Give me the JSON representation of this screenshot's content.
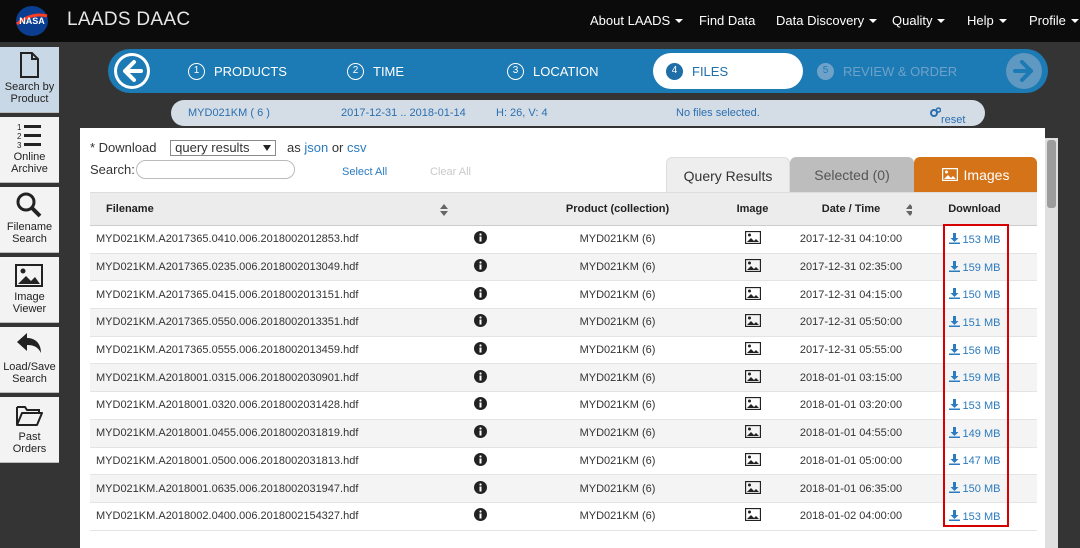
{
  "header": {
    "brand": "LAADS DAAC",
    "logo_text": "NASA",
    "nav": [
      {
        "label": "About LAADS",
        "dropdown": true
      },
      {
        "label": "Find Data",
        "dropdown": false
      },
      {
        "label": "Data Discovery",
        "dropdown": true
      },
      {
        "label": "Quality",
        "dropdown": true
      },
      {
        "label": "Help",
        "dropdown": true
      },
      {
        "label": "Profile",
        "dropdown": true
      }
    ]
  },
  "sidebar": {
    "items": [
      {
        "line1": "Search by",
        "line2": "Product",
        "icon": "document-icon"
      },
      {
        "line1": "Online",
        "line2": "Archive",
        "icon": "numbered-list-icon"
      },
      {
        "line1": "Filename",
        "line2": "Search",
        "icon": "magnifier-icon"
      },
      {
        "line1": "Image",
        "line2": "Viewer",
        "icon": "picture-icon"
      },
      {
        "line1": "Load/Save",
        "line2": "Search",
        "icon": "undo-arrow-icon"
      },
      {
        "line1": "Past",
        "line2": "Orders",
        "icon": "folder-open-icon"
      }
    ]
  },
  "wizard": {
    "steps": [
      {
        "num": "1",
        "label": "PRODUCTS",
        "state": "done"
      },
      {
        "num": "2",
        "label": "TIME",
        "state": "done"
      },
      {
        "num": "3",
        "label": "LOCATION",
        "state": "done"
      },
      {
        "num": "4",
        "label": "FILES",
        "state": "active"
      },
      {
        "num": "5",
        "label": "REVIEW & ORDER",
        "state": "disabled"
      }
    ]
  },
  "summary": {
    "product": "MYD021KM ( 6 )",
    "dates": "2017-12-31 .. 2018-01-14",
    "tiles": "H: 26, V: 4",
    "status": "No files selected.",
    "reset": "reset"
  },
  "download": {
    "prefix": "* Download",
    "select_value": "query results",
    "as_text": "as",
    "json_link": "json",
    "or_text": "or",
    "csv_link": "csv"
  },
  "search": {
    "label": "Search:",
    "value": "",
    "select_all": "Select All",
    "clear_all": "Clear All"
  },
  "tabs": {
    "query": "Query Results",
    "selected": "Selected (0)",
    "images": "Images"
  },
  "table": {
    "headers": {
      "filename": "Filename",
      "product": "Product (collection)",
      "image": "Image",
      "date": "Date / Time",
      "download": "Download"
    },
    "rows": [
      {
        "file": "MYD021KM.A2017365.0410.006.2018002012853.hdf",
        "product": "MYD021KM (6)",
        "date": "2017-12-31 04:10:00",
        "size": "153 MB"
      },
      {
        "file": "MYD021KM.A2017365.0235.006.2018002013049.hdf",
        "product": "MYD021KM (6)",
        "date": "2017-12-31 02:35:00",
        "size": "159 MB"
      },
      {
        "file": "MYD021KM.A2017365.0415.006.2018002013151.hdf",
        "product": "MYD021KM (6)",
        "date": "2017-12-31 04:15:00",
        "size": "150 MB"
      },
      {
        "file": "MYD021KM.A2017365.0550.006.2018002013351.hdf",
        "product": "MYD021KM (6)",
        "date": "2017-12-31 05:50:00",
        "size": "151 MB"
      },
      {
        "file": "MYD021KM.A2017365.0555.006.2018002013459.hdf",
        "product": "MYD021KM (6)",
        "date": "2017-12-31 05:55:00",
        "size": "156 MB"
      },
      {
        "file": "MYD021KM.A2018001.0315.006.2018002030901.hdf",
        "product": "MYD021KM (6)",
        "date": "2018-01-01 03:15:00",
        "size": "159 MB"
      },
      {
        "file": "MYD021KM.A2018001.0320.006.2018002031428.hdf",
        "product": "MYD021KM (6)",
        "date": "2018-01-01 03:20:00",
        "size": "153 MB"
      },
      {
        "file": "MYD021KM.A2018001.0455.006.2018002031819.hdf",
        "product": "MYD021KM (6)",
        "date": "2018-01-01 04:55:00",
        "size": "149 MB"
      },
      {
        "file": "MYD021KM.A2018001.0500.006.2018002031813.hdf",
        "product": "MYD021KM (6)",
        "date": "2018-01-01 05:00:00",
        "size": "147 MB"
      },
      {
        "file": "MYD021KM.A2018001.0635.006.2018002031947.hdf",
        "product": "MYD021KM (6)",
        "date": "2018-01-01 06:35:00",
        "size": "150 MB"
      },
      {
        "file": "MYD021KM.A2018002.0400.006.2018002154327.hdf",
        "product": "MYD021KM (6)",
        "date": "2018-01-02 04:00:00",
        "size": "153 MB"
      }
    ]
  },
  "colors": {
    "nav_bg": "#0b0b0b",
    "wizard_bg": "#1c7ab4",
    "link": "#2a7bbf",
    "images_tab": "#d47318",
    "highlight": "#d60000"
  }
}
